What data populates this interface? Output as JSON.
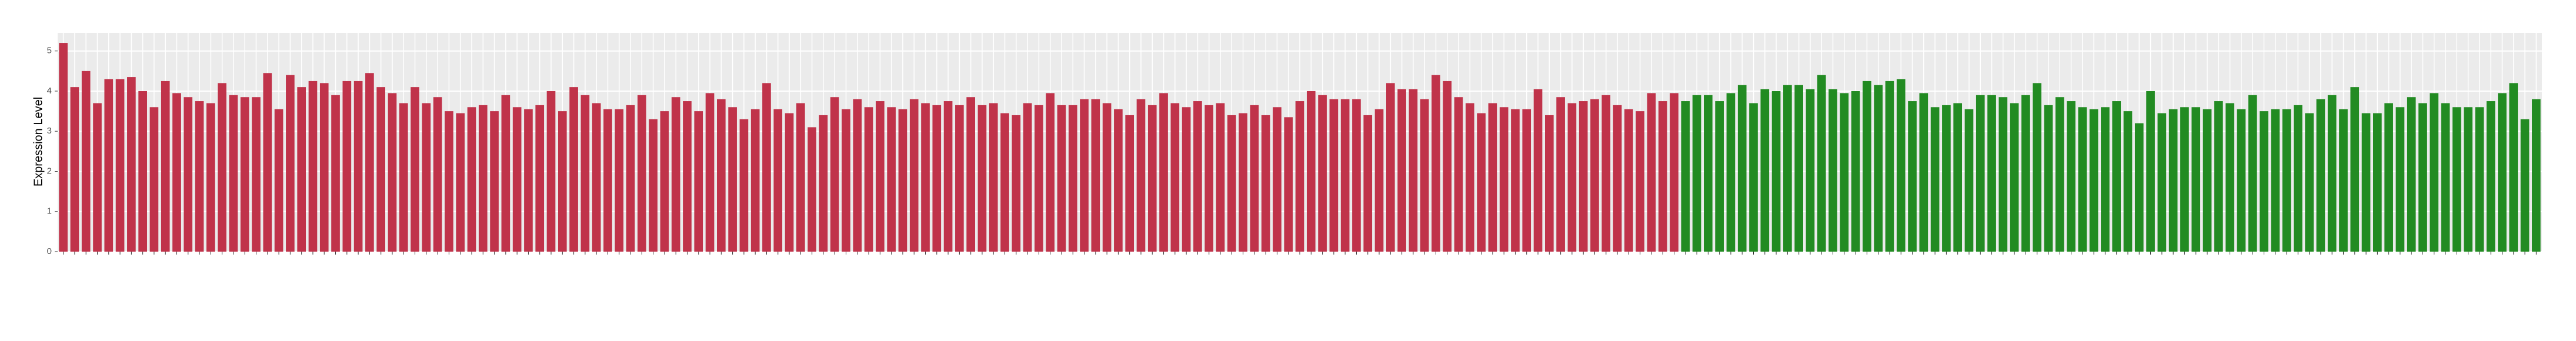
{
  "chart_data": {
    "type": "bar",
    "y_label": "Expression Level",
    "ylim": [
      0,
      5.45
    ],
    "yticks": [
      0,
      1,
      2,
      3,
      4,
      5
    ],
    "grid": true,
    "series": [
      {
        "color": "#c0334a",
        "values": [
          5.2,
          4.1,
          4.5,
          3.7,
          4.3,
          4.3,
          4.35,
          4.0,
          3.6,
          4.25,
          3.95,
          3.85,
          3.75,
          3.7,
          4.2,
          3.9,
          3.85,
          3.85,
          4.45,
          3.55,
          4.4,
          4.1,
          4.25,
          4.2,
          3.9,
          4.25,
          4.25,
          4.45,
          4.1,
          3.95,
          3.7,
          4.1,
          3.7,
          3.85,
          3.5,
          3.45,
          3.6,
          3.65,
          3.5,
          3.9,
          3.6,
          3.55,
          3.65,
          4.0,
          3.5,
          4.1,
          3.9,
          3.7,
          3.55,
          3.55,
          3.65,
          3.9,
          3.3,
          3.5,
          3.85,
          3.75,
          3.5,
          3.95,
          3.8,
          3.6,
          3.3,
          3.55,
          4.2,
          3.55,
          3.45,
          3.7,
          3.1,
          3.4,
          3.85,
          3.55,
          3.8,
          3.6,
          3.75,
          3.6,
          3.55,
          3.8,
          3.7,
          3.65,
          3.75,
          3.65,
          3.85,
          3.65,
          3.7,
          3.45,
          3.4,
          3.7,
          3.65,
          3.95,
          3.65,
          3.65,
          3.8,
          3.8,
          3.7,
          3.55,
          3.4,
          3.8,
          3.65,
          3.95,
          3.7,
          3.6,
          3.75,
          3.65,
          3.7,
          3.4,
          3.45,
          3.65,
          3.4,
          3.6,
          3.35,
          3.75,
          4.0,
          3.9,
          3.8,
          3.8,
          3.8,
          3.4,
          3.55,
          4.2,
          4.05,
          4.05,
          3.8,
          4.4,
          4.25,
          3.85,
          3.7,
          3.45,
          3.7,
          3.6,
          3.55,
          3.55,
          4.05,
          3.4,
          3.85,
          3.7,
          3.75,
          3.8,
          3.9,
          3.65,
          3.55,
          3.5,
          3.95,
          3.75,
          3.95
        ]
      },
      {
        "color": "#228b22",
        "values": [
          3.75,
          3.9,
          3.9,
          3.75,
          3.95,
          4.15,
          3.7,
          4.05,
          4.0,
          4.15,
          4.15,
          4.05,
          4.4,
          4.05,
          3.95,
          4.0,
          4.25,
          4.15,
          4.25,
          4.3,
          3.75,
          3.95,
          3.6,
          3.65,
          3.7,
          3.55,
          3.9,
          3.9,
          3.85,
          3.7,
          3.9,
          4.2,
          3.65,
          3.85,
          3.75,
          3.6,
          3.55,
          3.6,
          3.75,
          3.5,
          3.2,
          4.0,
          3.45,
          3.55,
          3.6,
          3.6,
          3.55,
          3.75,
          3.7,
          3.55,
          3.9,
          3.5,
          3.55,
          3.55,
          3.65,
          3.45,
          3.8,
          3.9,
          3.55,
          4.1,
          3.45,
          3.45,
          3.7,
          3.6,
          3.85,
          3.7,
          3.95,
          3.7,
          3.6,
          3.6,
          3.6,
          3.75,
          3.95,
          4.2,
          3.3,
          3.8
        ]
      }
    ]
  }
}
